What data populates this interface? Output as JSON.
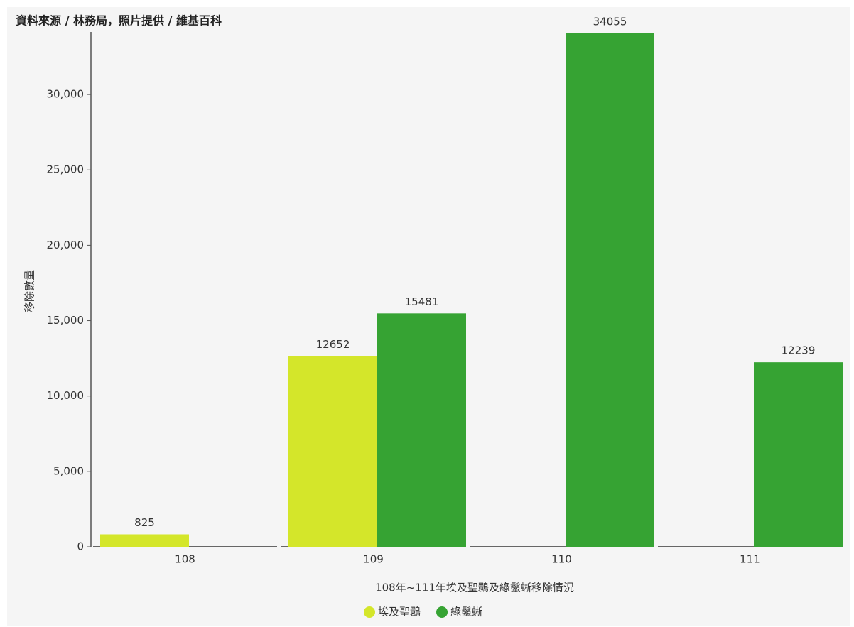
{
  "chart_data": {
    "type": "bar",
    "title": "資料來源 / 林務局，照片提供 / 維基百科",
    "x_label": "108年~111年埃及聖䴉及綠鬣蜥移除情況",
    "y_label": "移除數量",
    "categories": [
      "108",
      "109",
      "110",
      "111"
    ],
    "series": [
      {
        "name": "埃及聖䴉",
        "color": "#d4e62a",
        "values": [
          825,
          12652,
          null,
          null
        ]
      },
      {
        "name": "綠鬣蜥",
        "color": "#36a333",
        "values": [
          null,
          15481,
          34055,
          12239
        ]
      }
    ],
    "ylim": [
      0,
      34055
    ],
    "yticks": [
      0,
      {
        "value": 5000,
        "label": "5,000"
      },
      {
        "value": 10000,
        "label": "10,000"
      },
      {
        "value": 15000,
        "label": "15,000"
      },
      {
        "value": 20000,
        "label": "20,000"
      },
      {
        "value": 25000,
        "label": "25,000"
      },
      {
        "value": 30000,
        "label": "30,000"
      }
    ],
    "grid": false
  }
}
